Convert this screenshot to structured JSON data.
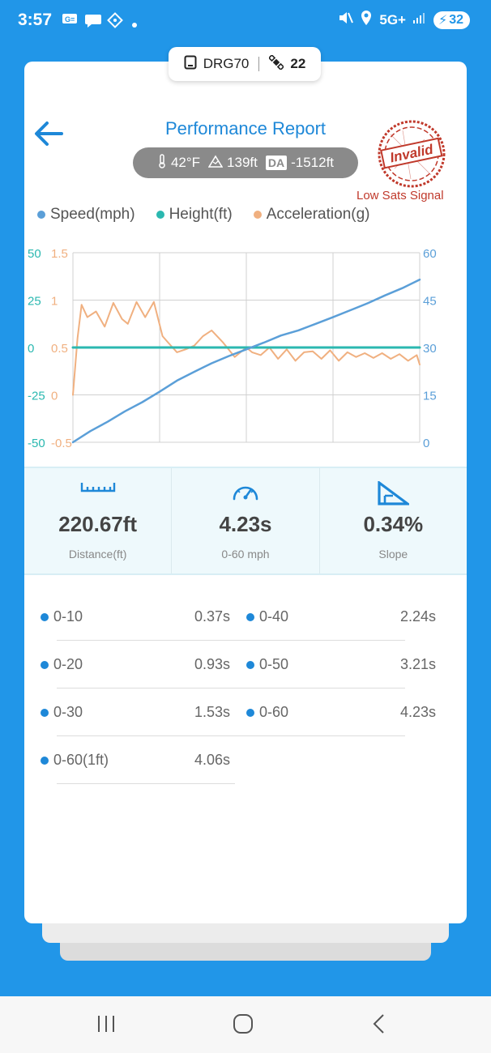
{
  "status_bar": {
    "time": "3:57",
    "network": "5G+",
    "battery": "32"
  },
  "device": {
    "name": "DRG70",
    "satellites": "22"
  },
  "header": {
    "title": "Performance Report",
    "temperature": "42°F",
    "altitude": "139ft",
    "da_label": "DA",
    "density_altitude": "-1512ft",
    "stamp_text": "Invalid",
    "warning": "Low Sats Signal"
  },
  "colors": {
    "speed": "#5B9FD8",
    "height": "#2BB8B0",
    "acceleration": "#F0B080",
    "accent": "#1E88D8",
    "warning": "#C0392B"
  },
  "chart_data": {
    "type": "line",
    "series": [
      {
        "name": "Speed(mph)",
        "x": [
          0,
          0.3,
          0.6,
          0.9,
          1.2,
          1.5,
          1.8,
          2.1,
          2.4,
          2.7,
          3.0,
          3.3,
          3.6,
          3.9,
          4.2,
          4.5,
          4.8,
          5.1,
          5.4,
          5.7,
          6.0
        ],
        "values": [
          0,
          3.5,
          6.5,
          9.8,
          12.7,
          16.0,
          19.5,
          22.3,
          25.0,
          27.3,
          29.4,
          31.5,
          33.8,
          35.4,
          37.5,
          39.6,
          41.8,
          44.0,
          46.5,
          48.8,
          51.5
        ]
      },
      {
        "name": "Height(ft)",
        "x": [
          0,
          6.0
        ],
        "values": [
          0,
          0
        ]
      },
      {
        "name": "Acceleration(g)",
        "x": [
          0,
          0.08,
          0.15,
          0.25,
          0.4,
          0.55,
          0.7,
          0.85,
          0.95,
          1.1,
          1.25,
          1.4,
          1.55,
          1.65,
          1.8,
          1.95,
          2.1,
          2.25,
          2.4,
          2.6,
          2.8,
          2.9,
          3.0,
          3.1,
          3.25,
          3.4,
          3.55,
          3.7,
          3.85,
          4.0,
          4.15,
          4.3,
          4.45,
          4.6,
          4.75,
          4.9,
          5.05,
          5.2,
          5.35,
          5.5,
          5.65,
          5.8,
          5.95,
          6.0
        ],
        "values": [
          0,
          0.6,
          0.95,
          0.82,
          0.88,
          0.72,
          0.97,
          0.8,
          0.75,
          0.98,
          0.82,
          0.98,
          0.62,
          0.55,
          0.45,
          0.48,
          0.52,
          0.62,
          0.68,
          0.55,
          0.4,
          0.45,
          0.5,
          0.45,
          0.42,
          0.5,
          0.38,
          0.48,
          0.36,
          0.45,
          0.46,
          0.38,
          0.47,
          0.36,
          0.45,
          0.4,
          0.44,
          0.39,
          0.44,
          0.38,
          0.43,
          0.36,
          0.42,
          0.32
        ]
      }
    ],
    "axes": {
      "height_left": {
        "ticks": [
          "50",
          "25",
          "0",
          "-25",
          "-50"
        ],
        "range": [
          -50,
          50
        ]
      },
      "acceleration_left": {
        "ticks": [
          "1.5",
          "1",
          "0.5",
          "0",
          "-0.5"
        ],
        "range": [
          -0.5,
          1.5
        ]
      },
      "speed_right": {
        "ticks": [
          "60",
          "45",
          "30",
          "15",
          "0"
        ],
        "range": [
          0,
          60
        ]
      }
    },
    "grid": true,
    "legend": "top"
  },
  "stats": {
    "distance_value": "220.67ft",
    "distance_label": "Distance(ft)",
    "time_value": "4.23s",
    "time_label": "0-60 mph",
    "slope_value": "0.34%",
    "slope_label": "Slope"
  },
  "splits": {
    "left": [
      {
        "name": "0-10",
        "value": "0.37s"
      },
      {
        "name": "0-20",
        "value": "0.93s"
      },
      {
        "name": "0-30",
        "value": "1.53s"
      },
      {
        "name": "0-60(1ft)",
        "value": "4.06s"
      }
    ],
    "right": [
      {
        "name": "0-40",
        "value": "2.24s"
      },
      {
        "name": "0-50",
        "value": "3.21s"
      },
      {
        "name": "0-60",
        "value": "4.23s"
      }
    ]
  }
}
